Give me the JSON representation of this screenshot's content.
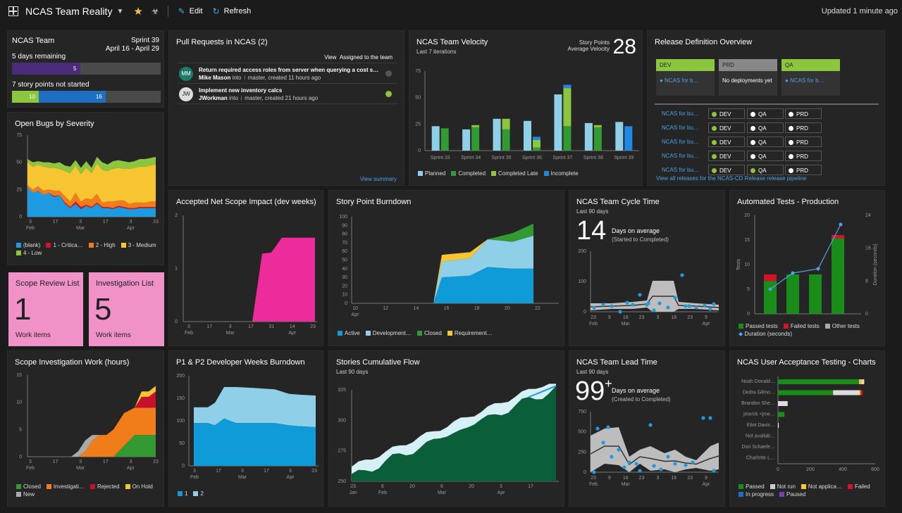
{
  "topbar": {
    "title": "NCAS Team Reality",
    "edit": "Edit",
    "refresh": "Refresh",
    "updated": "Updated 1 minute ago"
  },
  "sprint": {
    "team": "NCAS Team",
    "sprint": "Sprint 39",
    "dates": "April 16 - April 29",
    "remaining": "5 days remaining",
    "days_value": "5",
    "days_fraction": 0.46,
    "not_started": "7 story points not started",
    "bar_green_value": "10",
    "bar_blue_value": "16",
    "green_fraction": 0.18,
    "blue_fraction": 0.45
  },
  "pr": {
    "title": "Pull Requests in NCAS (2)",
    "view": "View",
    "filter": "Assigned to the team",
    "items": [
      {
        "title": "Return required access roles from server when querying a cost s…",
        "author": "Mike Mason",
        "into": "into",
        "branch": "master",
        "time": "created 11 hours ago",
        "avatar": "MM",
        "status": "pending"
      },
      {
        "title": "Implement new inventory calcs",
        "author": "JWorkman",
        "into": "into",
        "branch": "master",
        "time": "created 21 hours ago",
        "avatar": "JW",
        "status": "done"
      }
    ],
    "summary": "View summary"
  },
  "velocity": {
    "title": "NCAS Team Velocity",
    "sub": "Last 7 iterations",
    "label1": "Story Points",
    "label2": "Average Velocity",
    "value": "28",
    "legend": [
      "Planned",
      "Completed",
      "Completed Late",
      "Incomplete"
    ],
    "colors": {
      "planned": "#8fd0e8",
      "completed": "#339933",
      "late": "#8cc63f",
      "incomplete": "#1e88e5"
    }
  },
  "release": {
    "title": "Release Definition Overview",
    "stages": [
      {
        "name": "DEV",
        "status": "NCAS for b…",
        "color": "#8cc63f"
      },
      {
        "name": "PRD",
        "status": "No deployments yet",
        "color": "#888888"
      },
      {
        "name": "QA",
        "status": "NCAS for b…",
        "color": "#8cc63f"
      }
    ],
    "rows": [
      {
        "name": "NCAS for bu…",
        "dev": "DEV",
        "qa": "QA",
        "prd": "PRD",
        "dev_ok": true,
        "qa_ok": false
      },
      {
        "name": "NCAS for bu…",
        "dev": "DEV",
        "qa": "QA",
        "prd": "PRD",
        "dev_ok": true,
        "qa_ok": false
      },
      {
        "name": "NCAS for bu…",
        "dev": "DEV",
        "qa": "QA",
        "prd": "PRD",
        "dev_ok": true,
        "qa_ok": false
      },
      {
        "name": "NCAS for bu…",
        "dev": "DEV",
        "qa": "QA",
        "prd": "PRD",
        "dev_ok": true,
        "qa_ok": false
      },
      {
        "name": "NCAS for bu…",
        "dev": "DEV",
        "qa": "QA",
        "prd": "PRD",
        "dev_ok": true,
        "qa_ok": true
      }
    ],
    "link": "View all releases for the NCAS-CD Release release pipeline"
  },
  "bugs": {
    "title": "Open Bugs by Severity",
    "legend": [
      "(blank)",
      "1 - Critica…",
      "2 - High",
      "3 - Medium",
      "4 - Low"
    ]
  },
  "scope": {
    "title": "Scope Review List",
    "value": "1",
    "foot": "Work items"
  },
  "invest": {
    "title": "Investigation List",
    "value": "5",
    "foot": "Work items"
  },
  "netscope": {
    "title": "Accepted Net Scope Impact (dev weeks)"
  },
  "burndown": {
    "title": "Story Point Burndown",
    "legend": [
      "Active",
      "Development…",
      "Closed",
      "Requirement…"
    ]
  },
  "cycle": {
    "title": "NCAS Team Cycle Time",
    "sub": "Last 90 days",
    "value": "14",
    "label": "Days on average",
    "note": "(Started to Completed)"
  },
  "autotest": {
    "title": "Automated Tests - Production",
    "ylabel": "Tests",
    "y2label": "Duration (seconds)",
    "legend": [
      "Passed tests",
      "Failed tests",
      "Other tests",
      "Duration (seconds)"
    ]
  },
  "scopeinv": {
    "title": "Scope Investigation Work (hours)",
    "legend": [
      "Closed",
      "Investigati…",
      "Rejected",
      "On Hold",
      "New"
    ]
  },
  "p1p2": {
    "title": "P1 & P2 Developer Weeks Burndown",
    "legend": [
      "1",
      "2"
    ]
  },
  "cfd": {
    "title": "Stories Cumulative Flow",
    "sub": "Last 90 days"
  },
  "lead": {
    "title": "NCAS Team Lead Time",
    "sub": "Last 90 days",
    "value": "99",
    "plus": "+",
    "label": "Days on average",
    "note": "(Created to Completed)"
  },
  "uat": {
    "title": "NCAS User Acceptance Testing - Charts",
    "legend": [
      "Passed",
      "Not run",
      "Not applica…",
      "Failed",
      "In progress",
      "Paused"
    ]
  },
  "chart_data": [
    {
      "type": "bar",
      "id": "velocity",
      "categories": [
        "Sprint 33",
        "Sprint 34",
        "Sprint 35",
        "Sprint 36",
        "Sprint 37",
        "Sprint 38",
        "Sprint 39"
      ],
      "ylim": [
        0,
        75
      ],
      "yticks": [
        "0",
        "25",
        "50",
        "75"
      ],
      "series": [
        {
          "name": "Planned",
          "values": [
            23,
            20,
            30,
            28,
            53,
            26,
            27
          ]
        },
        {
          "name": "Completed",
          "values": [
            21,
            22,
            20,
            3,
            23,
            22,
            0
          ]
        },
        {
          "name": "Completed Late",
          "values": [
            0,
            2,
            10,
            7,
            36,
            2,
            0
          ]
        },
        {
          "name": "Incomplete",
          "values": [
            0,
            0,
            0,
            3,
            3,
            0,
            23
          ]
        }
      ]
    },
    {
      "type": "area",
      "id": "bugs",
      "x": [
        "3\nFeb",
        "17",
        "3\nMar",
        "17",
        "3\nApr",
        "23"
      ],
      "ylim": [
        0,
        75
      ],
      "yticks": [
        "0",
        "25",
        "50",
        "75"
      ],
      "series": [
        {
          "name": "(blank)"
        },
        {
          "name": "1 - Critica…"
        },
        {
          "name": "2 - High"
        },
        {
          "name": "3 - Medium"
        },
        {
          "name": "4 - Low"
        }
      ]
    },
    {
      "type": "area",
      "id": "netscope",
      "x": [
        "3\nFeb",
        "17",
        "3\nMar",
        "17",
        "31",
        "14\nApr",
        "23"
      ],
      "ylim": [
        0,
        2
      ],
      "yticks": [
        "0",
        "1",
        "2"
      ]
    },
    {
      "type": "area",
      "id": "burndown",
      "x": [
        "10\nApr",
        "12",
        "14",
        "16",
        "18",
        "20",
        "22"
      ],
      "ylim": [
        0,
        100
      ],
      "yticks": [
        "0",
        "10",
        "20",
        "30",
        "40",
        "50",
        "60",
        "70",
        "80",
        "90",
        "100"
      ]
    },
    {
      "type": "scatter",
      "id": "cycle",
      "x": [
        "23\nFeb",
        "9",
        "16\nMar",
        "23",
        "3",
        "16",
        "23",
        "9\nApr"
      ],
      "ylim": [
        0,
        200
      ],
      "yticks": [
        "0",
        "100",
        "200"
      ]
    },
    {
      "type": "bar",
      "id": "autotest",
      "x": [
        "3",
        "17",
        "3\nMar",
        "17",
        "3\nApr",
        "23"
      ],
      "ylim": [
        0,
        20
      ],
      "yticks": [
        "0",
        "5",
        "10",
        "15",
        "20"
      ],
      "y2ticks": [
        "0",
        "8",
        "16",
        "24"
      ]
    },
    {
      "type": "area",
      "id": "scopeinv",
      "x": [
        "3\nFeb",
        "17",
        "3\nMar",
        "17",
        "3\nApr",
        "23"
      ],
      "ylim": [
        0,
        15
      ],
      "yticks": [
        "0",
        "5",
        "10",
        "15"
      ]
    },
    {
      "type": "area",
      "id": "p1p2",
      "x": [
        "3\nFeb",
        "17",
        "3\nMar",
        "17",
        "3\nApr",
        "23"
      ],
      "ylim": [
        0,
        200
      ],
      "yticks": [
        "0",
        "50",
        "100",
        "150",
        "200"
      ]
    },
    {
      "type": "area",
      "id": "cfd",
      "x": [
        "23\nJan",
        "6\nFeb",
        "20",
        "6\nMar",
        "20",
        "3\nApr",
        "17"
      ],
      "ylim": [
        250,
        325
      ],
      "yticks": [
        "250",
        "275",
        "300",
        "325"
      ]
    },
    {
      "type": "scatter",
      "id": "lead",
      "x": [
        "23\nFeb",
        "9",
        "16\nMar",
        "23",
        "3",
        "16",
        "23",
        "9\nApr"
      ],
      "ylim": [
        0,
        750
      ],
      "yticks": [
        "0",
        "250",
        "500",
        "750"
      ]
    },
    {
      "type": "bar",
      "id": "uat",
      "categories": [
        "Noah Donald…",
        "Dedra Gilmo…",
        "Brandon She…",
        "jmerck <jme…",
        "Eliot Davis…",
        "Not availab…",
        "Don Schaefe…",
        "Charlotte L…"
      ],
      "xticks": [
        "0",
        "200",
        "400",
        "600"
      ],
      "values": [
        540,
        520,
        60,
        40,
        5,
        0,
        0,
        0
      ]
    }
  ]
}
